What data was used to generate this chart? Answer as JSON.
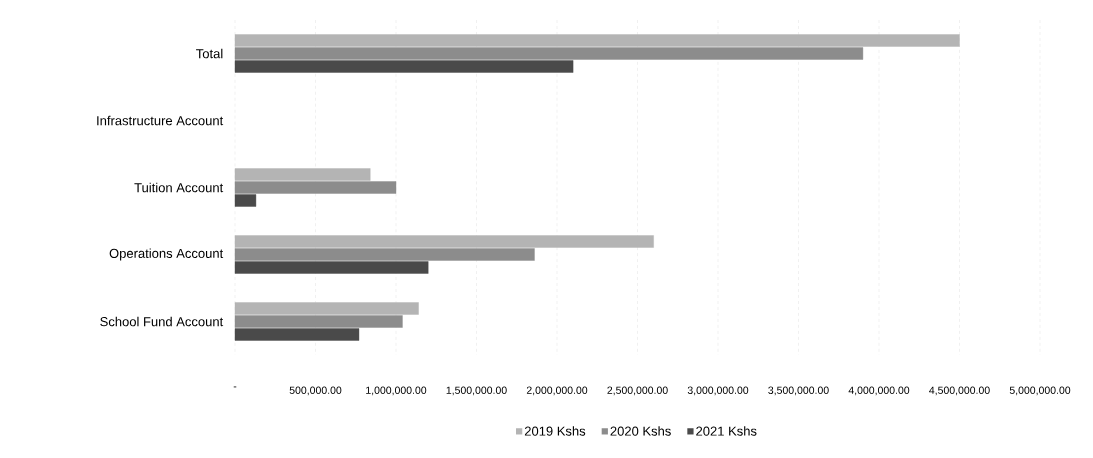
{
  "chart_data": {
    "type": "bar",
    "orientation": "horizontal",
    "categories": [
      "Total",
      "Infrastructure Account",
      "Tuition Account",
      "Operations Account",
      "School Fund Account"
    ],
    "series": [
      {
        "name": "2019 Kshs",
        "color": "#b4b4b4",
        "values": [
          4500000,
          null,
          840000,
          2600000,
          1140000
        ]
      },
      {
        "name": "2020 Kshs",
        "color": "#8c8c8c",
        "values": [
          3900000,
          null,
          1000000,
          1860000,
          1040000
        ]
      },
      {
        "name": "2021 Kshs",
        "color": "#4a4a4a",
        "values": [
          2100000,
          null,
          130000,
          1200000,
          770000
        ]
      }
    ],
    "xlim": [
      0,
      5000000
    ],
    "xticks": [
      {
        "value": 0,
        "label": "-"
      },
      {
        "value": 500000,
        "label": "500,000.00"
      },
      {
        "value": 1000000,
        "label": "1,000,000.00"
      },
      {
        "value": 1500000,
        "label": "1,500,000.00"
      },
      {
        "value": 2000000,
        "label": "2,000,000.00"
      },
      {
        "value": 2500000,
        "label": "2,500,000.00"
      },
      {
        "value": 3000000,
        "label": "3,000,000.00"
      },
      {
        "value": 3500000,
        "label": "3,500,000.00"
      },
      {
        "value": 4000000,
        "label": "4,000,000.00"
      },
      {
        "value": 4500000,
        "label": "4,500,000.00"
      },
      {
        "value": 5000000,
        "label": "5,000,000.00"
      }
    ],
    "grid": "x",
    "legend": "bottom"
  }
}
